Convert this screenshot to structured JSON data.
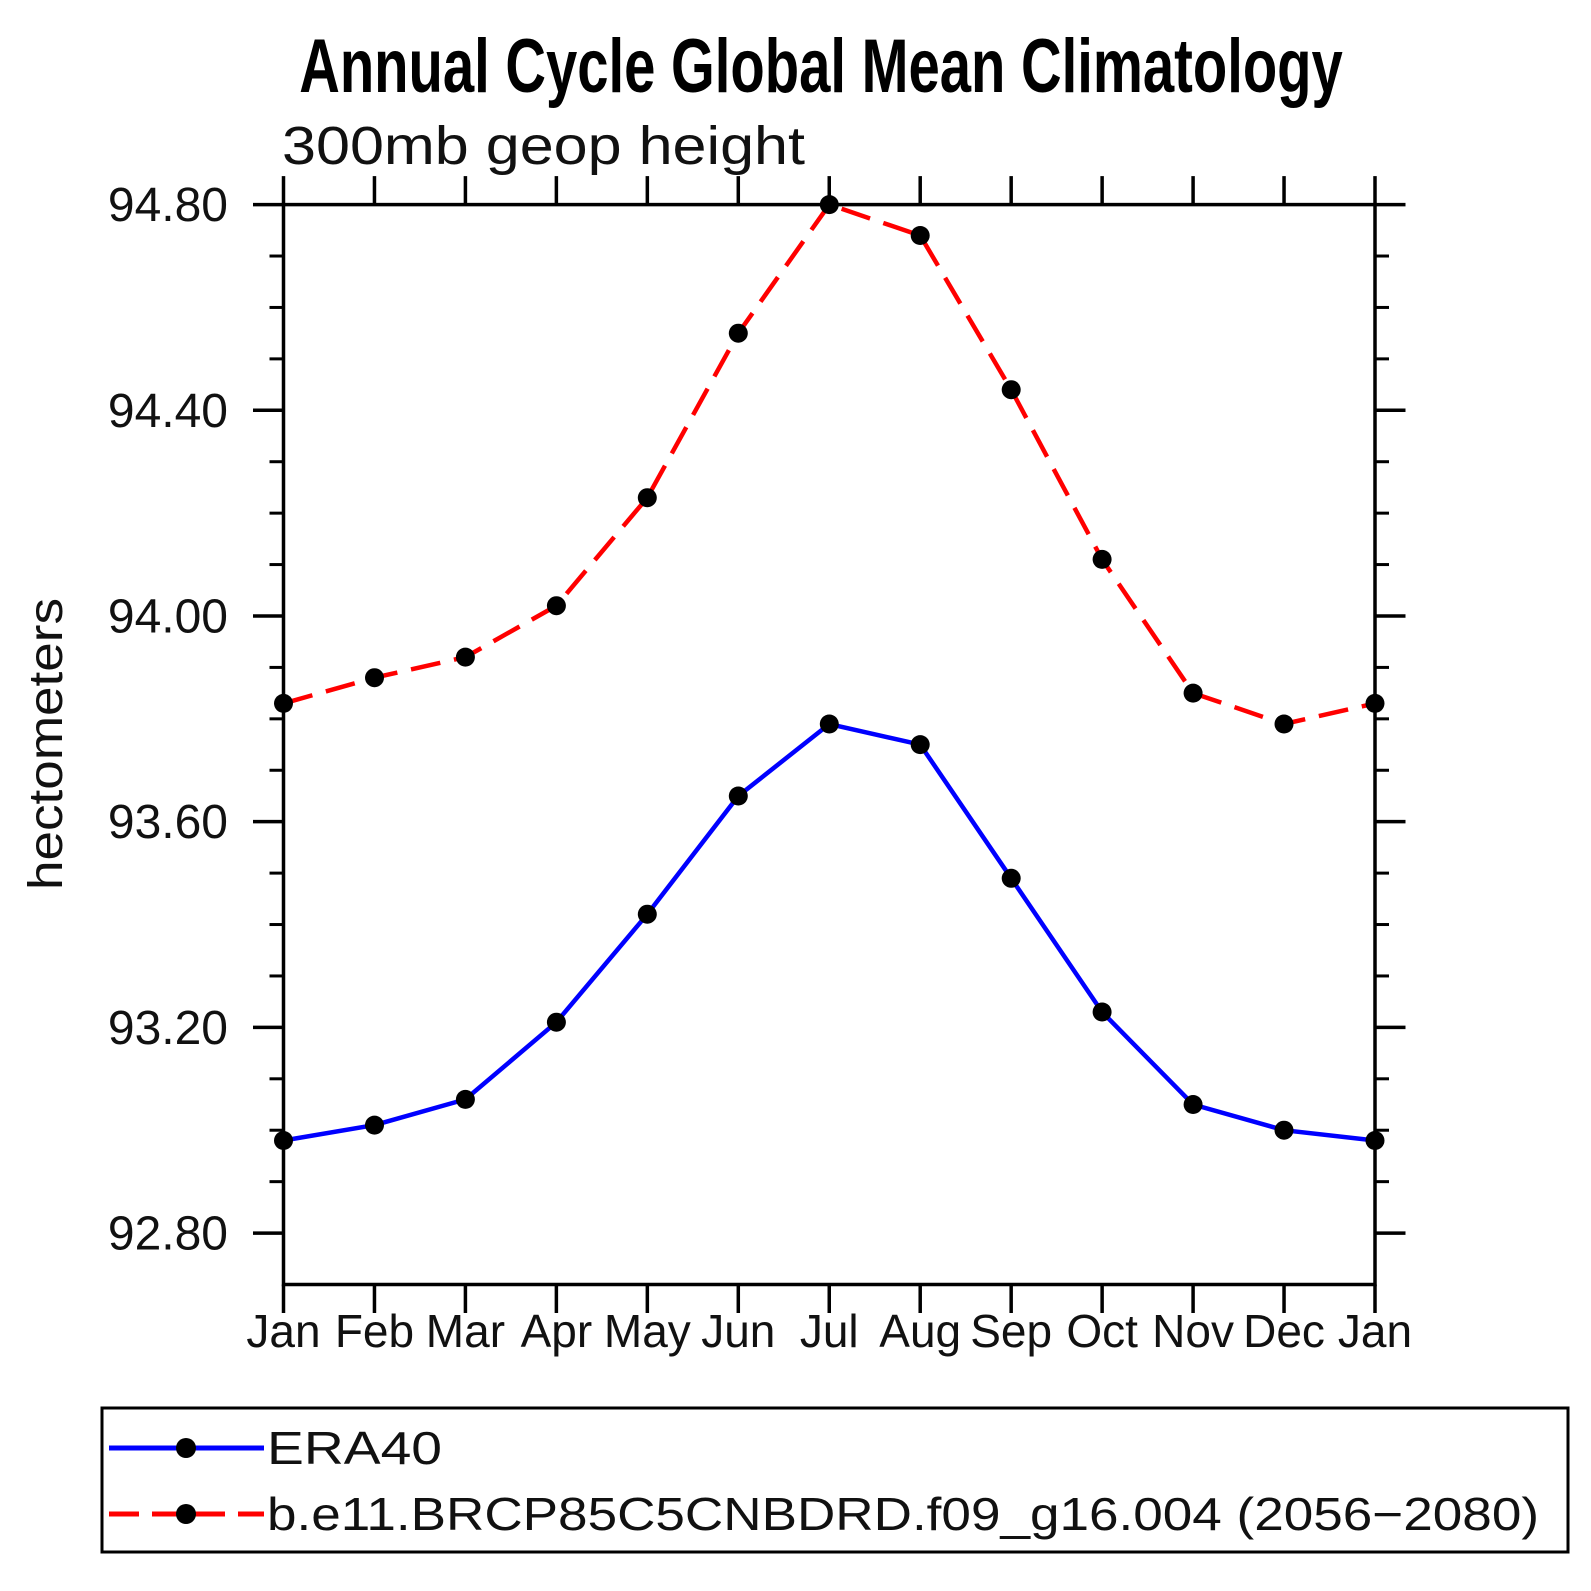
{
  "header": {
    "title": "Annual Cycle Global Mean Climatology",
    "subtitle": "300mb geop height"
  },
  "y_axis": {
    "label": "hectometers"
  },
  "legend": {
    "entries": [
      {
        "label": "ERA40",
        "color": "#0000ff",
        "line_style": "solid",
        "marker": "filled-circle"
      },
      {
        "label": "b.e11.BRCP85C5CNBDRD.f09_g16.004 (2056−2080)",
        "color": "#ff0000",
        "line_style": "dashed",
        "marker": "filled-circle"
      }
    ]
  },
  "colors": {
    "era40_line": "#0000ff",
    "model_line": "#ff0000",
    "marker": "#000000",
    "axis": "#000000",
    "background": "#ffffff"
  },
  "chart_data": {
    "type": "line",
    "title": "Annual Cycle Global Mean Climatology",
    "subtitle": "300mb geop height",
    "ylabel": "hectometers",
    "xlabel": "",
    "x_categories": [
      "Jan",
      "Feb",
      "Mar",
      "Apr",
      "May",
      "Jun",
      "Jul",
      "Aug",
      "Sep",
      "Oct",
      "Nov",
      "Dec",
      "Jan"
    ],
    "ylim": [
      92.7,
      94.8
    ],
    "y_major_tick_labels": [
      "94.80",
      "94.40",
      "94.00",
      "93.60",
      "93.20",
      "92.80"
    ],
    "y_minor_step": 0.1,
    "grid": false,
    "legend_position": "bottom-box",
    "series": [
      {
        "name": "ERA40",
        "color": "#0000ff",
        "line_style": "solid",
        "marker": "filled-circle",
        "values": [
          92.98,
          93.01,
          93.06,
          93.21,
          93.42,
          93.65,
          93.79,
          93.75,
          93.49,
          93.23,
          93.05,
          93.0,
          92.98
        ]
      },
      {
        "name": "b.e11.BRCP85C5CNBDRD.f09_g16.004 (2056−2080)",
        "color": "#ff0000",
        "line_style": "dashed",
        "marker": "filled-circle",
        "values": [
          93.83,
          93.88,
          93.92,
          94.02,
          94.23,
          94.55,
          94.8,
          94.74,
          94.44,
          94.11,
          93.85,
          93.79,
          93.83
        ]
      }
    ]
  }
}
